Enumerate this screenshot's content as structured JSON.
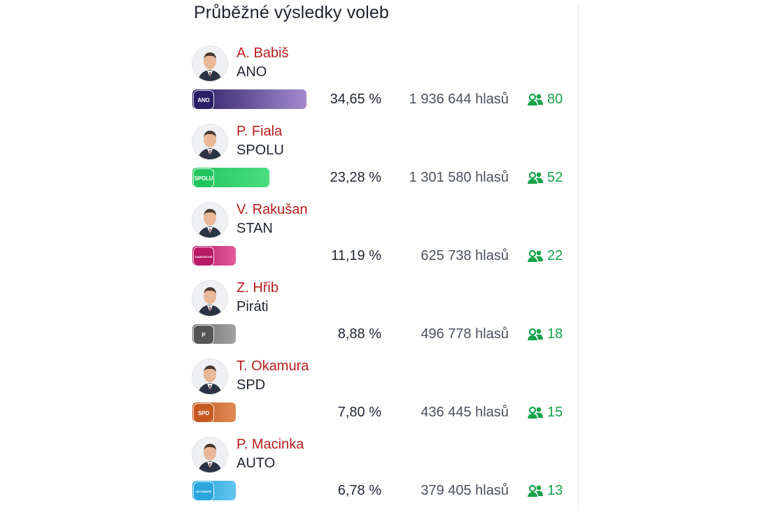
{
  "title": "Průběžné výsledky voleb",
  "colors": {
    "name": "#b91c1c",
    "seats": "#16a34a"
  },
  "results": [
    {
      "leader": "A. Babiš",
      "party": "ANO",
      "percent": "34,65 %",
      "votes": "1 936 644 hlasů",
      "seats": "80",
      "share": 34.65,
      "logo_text": "ANO",
      "bar_from": "#2a1f66",
      "bar_to": "#a58ad0",
      "logo_bg": "#2a1f66"
    },
    {
      "leader": "P. Fiala",
      "party": "SPOLU",
      "percent": "23,28 %",
      "votes": "1 301 580 hlasů",
      "seats": "52",
      "share": 23.28,
      "logo_text": "SPOLU",
      "bar_from": "#22c55e",
      "bar_to": "#4ade80",
      "logo_bg": "#22c55e"
    },
    {
      "leader": "V. Rakušan",
      "party": "STAN",
      "percent": "11,19 %",
      "votes": "625 738 hlasů",
      "seats": "22",
      "share": 11.19,
      "logo_text": "STAROSTOVÉ",
      "bar_from": "#b81a66",
      "bar_to": "#e25a9c",
      "logo_bg": "#b81a66"
    },
    {
      "leader": "Z. Hřib",
      "party": "Piráti",
      "percent": "8,88 %",
      "votes": "496 778 hlasů",
      "seats": "18",
      "share": 8.88,
      "logo_text": "P",
      "bar_from": "#6b6b6b",
      "bar_to": "#a3a3a3",
      "logo_bg": "#555555"
    },
    {
      "leader": "T. Okamura",
      "party": "SPD",
      "percent": "7,80 %",
      "votes": "436 445 hlasů",
      "seats": "15",
      "share": 7.8,
      "logo_text": "SPD",
      "bar_from": "#c75a22",
      "bar_to": "#e08a55",
      "logo_bg": "#c75a22"
    },
    {
      "leader": "P. Macinka",
      "party": "AUTO",
      "percent": "6,78 %",
      "votes": "379 405 hlasů",
      "seats": "13",
      "share": 6.78,
      "logo_text": "MOTORISTÉ",
      "bar_from": "#2aa6dd",
      "bar_to": "#62c4ef",
      "logo_bg": "#2aa6dd"
    }
  ]
}
